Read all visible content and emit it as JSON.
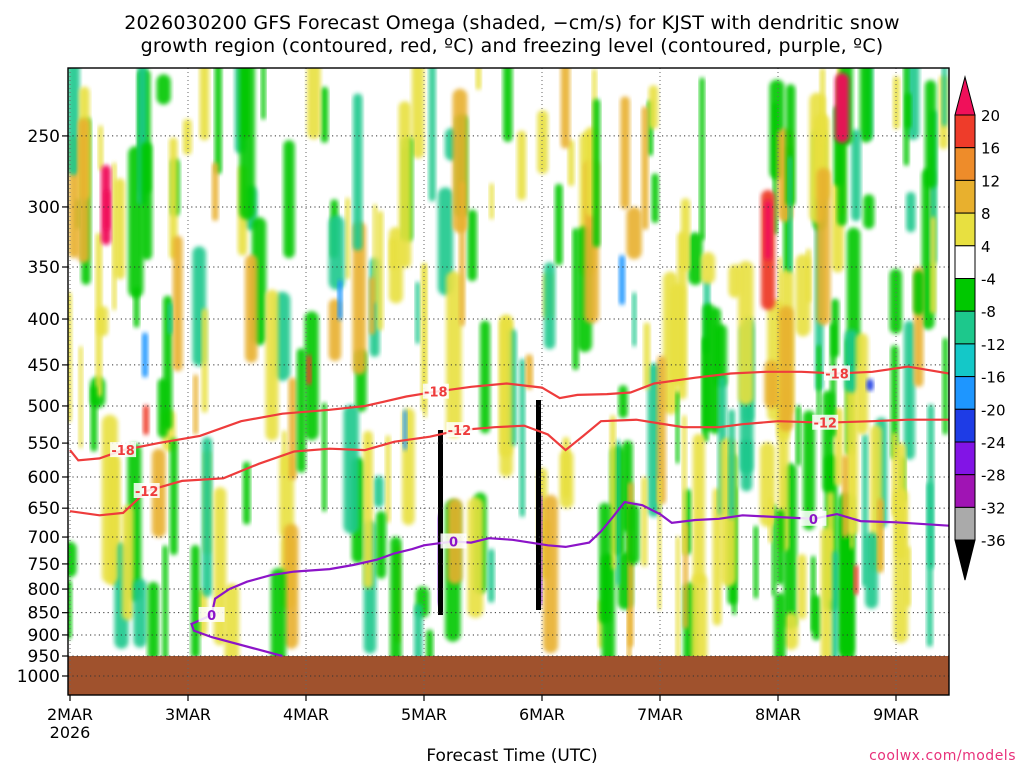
{
  "title_line1": "2026030200 GFS Forecast Omega (shaded, −cm/s) for KJST with dendritic snow",
  "title_line2": "growth region (contoured, red, ºC) and freezing level (contoured, purple, ºC)",
  "credit": "coolwx.com/models",
  "chart_data": {
    "type": "heatmap",
    "title": "2026030200 GFS Forecast Omega (shaded, −cm/s) for KJST with dendritic snow growth region (contoured, red, ºC) and freezing level (contoured, purple, ºC)",
    "xlabel": "Forecast Time (UTC)",
    "ylabel": "",
    "x_tick_labels": [
      "2MAR",
      "3MAR",
      "4MAR",
      "5MAR",
      "6MAR",
      "7MAR",
      "8MAR",
      "9MAR"
    ],
    "x_tick_sublabel": "2026",
    "x_range_days": [
      0,
      7.45
    ],
    "y_scale": "log",
    "y_range": [
      1050,
      210
    ],
    "y_ticks": [
      250,
      300,
      350,
      400,
      450,
      500,
      550,
      600,
      650,
      700,
      750,
      800,
      850,
      900,
      950,
      1000
    ],
    "grid": true,
    "ground_pressure": 950,
    "colorbar": {
      "levels": [
        20,
        16,
        12,
        8,
        4,
        -4,
        -8,
        -12,
        -16,
        -20,
        -24,
        -28,
        -32,
        -36
      ],
      "colors": [
        "#f0105a",
        "#ee3c2a",
        "#ee8c2a",
        "#e8b02e",
        "#e8e040",
        "#ffffff",
        "#00c800",
        "#1dc88c",
        "#14c8c8",
        "#1e96ff",
        "#1e3ce6",
        "#8214e6",
        "#a014b4",
        "#aaaaaa",
        "#000000"
      ]
    },
    "contours": [
      {
        "label": "-18",
        "color": "#ee3c3c",
        "points": [
          [
            0,
            560
          ],
          [
            0.07,
            575
          ],
          [
            0.25,
            572
          ],
          [
            0.45,
            560
          ],
          [
            0.75,
            550
          ],
          [
            1.1,
            540
          ],
          [
            1.45,
            520
          ],
          [
            1.8,
            510
          ],
          [
            2.2,
            505
          ],
          [
            2.5,
            500
          ],
          [
            2.85,
            488
          ],
          [
            3.1,
            482
          ],
          [
            3.4,
            476
          ],
          [
            3.7,
            472
          ],
          [
            4.0,
            477
          ],
          [
            4.15,
            490
          ],
          [
            4.3,
            486
          ],
          [
            4.55,
            485
          ],
          [
            4.75,
            483
          ],
          [
            4.95,
            472
          ],
          [
            5.3,
            465
          ],
          [
            5.6,
            460
          ],
          [
            5.9,
            458
          ],
          [
            6.2,
            458
          ],
          [
            6.5,
            460
          ],
          [
            6.8,
            458
          ],
          [
            7.1,
            452
          ],
          [
            7.45,
            460
          ]
        ]
      },
      {
        "label": "-12",
        "color": "#ee3c3c",
        "points": [
          [
            0,
            655
          ],
          [
            0.25,
            662
          ],
          [
            0.45,
            658
          ],
          [
            0.65,
            622
          ],
          [
            0.95,
            606
          ],
          [
            1.3,
            602
          ],
          [
            1.6,
            580
          ],
          [
            1.9,
            562
          ],
          [
            2.2,
            558
          ],
          [
            2.5,
            560
          ],
          [
            2.75,
            548
          ],
          [
            3.05,
            541
          ],
          [
            3.3,
            532
          ],
          [
            3.6,
            528
          ],
          [
            3.85,
            526
          ],
          [
            4.05,
            538
          ],
          [
            4.2,
            560
          ],
          [
            4.35,
            540
          ],
          [
            4.5,
            520
          ],
          [
            4.8,
            518
          ],
          [
            5.0,
            523
          ],
          [
            5.2,
            528
          ],
          [
            5.5,
            528
          ],
          [
            5.7,
            524
          ],
          [
            6.0,
            520
          ],
          [
            6.4,
            522
          ],
          [
            6.8,
            520
          ],
          [
            7.1,
            518
          ],
          [
            7.45,
            518
          ]
        ]
      },
      {
        "label": "0",
        "color": "#8c14c8",
        "points": [
          [
            1.8,
            950
          ],
          [
            1.2,
            905
          ],
          [
            1.05,
            890
          ],
          [
            1.03,
            875
          ],
          [
            1.2,
            855
          ],
          [
            1.23,
            820
          ],
          [
            1.35,
            800
          ],
          [
            1.5,
            785
          ],
          [
            1.7,
            772
          ],
          [
            1.9,
            765
          ],
          [
            2.2,
            760
          ],
          [
            2.4,
            752
          ],
          [
            2.6,
            742
          ],
          [
            2.75,
            730
          ],
          [
            2.9,
            722
          ],
          [
            3.0,
            715
          ],
          [
            3.1,
            712
          ],
          [
            3.25,
            708
          ],
          [
            3.4,
            710
          ],
          [
            3.55,
            702
          ],
          [
            3.75,
            705
          ],
          [
            3.9,
            710
          ],
          [
            4.05,
            715
          ],
          [
            4.2,
            718
          ],
          [
            4.4,
            710
          ],
          [
            4.5,
            690
          ],
          [
            4.6,
            665
          ],
          [
            4.7,
            640
          ],
          [
            4.85,
            645
          ],
          [
            5.0,
            660
          ],
          [
            5.1,
            675
          ],
          [
            5.3,
            670
          ],
          [
            5.5,
            668
          ],
          [
            5.7,
            662
          ],
          [
            5.9,
            664
          ],
          [
            6.1,
            666
          ],
          [
            6.3,
            668
          ],
          [
            6.5,
            660
          ],
          [
            6.7,
            672
          ],
          [
            7.0,
            674
          ],
          [
            7.45,
            680
          ]
        ]
      }
    ]
  }
}
